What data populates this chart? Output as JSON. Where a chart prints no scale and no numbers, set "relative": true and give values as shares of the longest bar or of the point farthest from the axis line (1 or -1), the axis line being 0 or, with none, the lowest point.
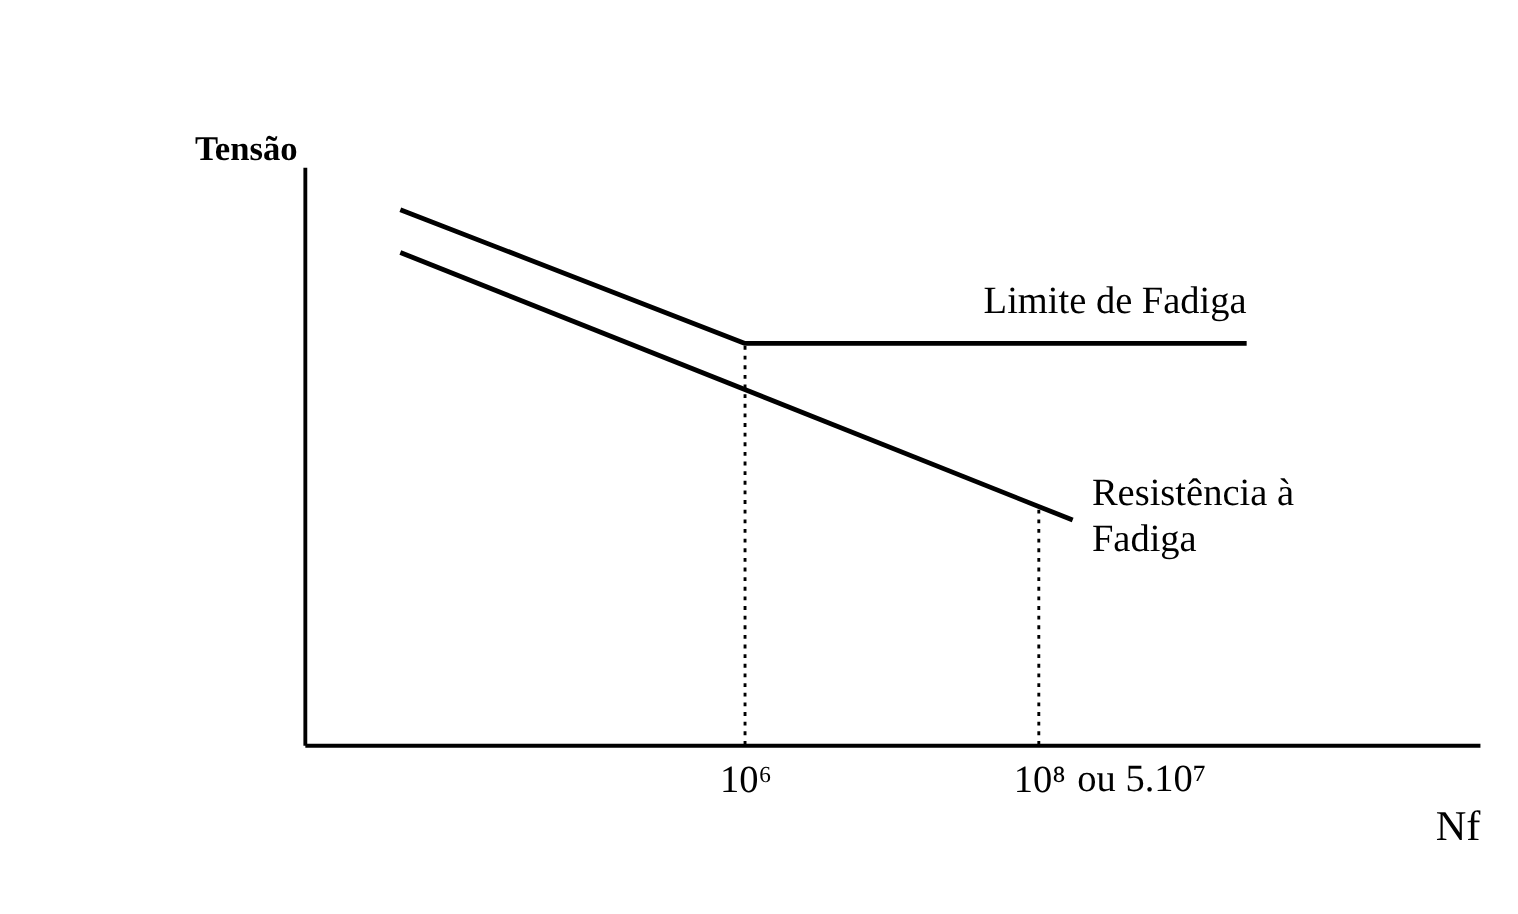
{
  "chart_data": {
    "type": "line",
    "relative": true,
    "ylabel": "Tensão",
    "xlabel": "Nf",
    "log": "x",
    "xlim": [
      1000,
      100000000000
    ],
    "xticks": [
      {
        "value": 1000000,
        "label": "10⁶"
      },
      {
        "value": 100000000,
        "label": "10⁸"
      }
    ],
    "annotations": [
      "ou 5.10⁷"
    ],
    "ref_lines": [
      {
        "axis": "x",
        "value": 1000000,
        "line_style": "dotted",
        "color": "#000000"
      },
      {
        "axis": "x",
        "value": 100000000,
        "line_style": "dotted",
        "color": "#000000"
      }
    ],
    "tick_labels": "x",
    "marker": "none",
    "line_style": "solid",
    "series": [
      {
        "name": "Limite de Fadiga",
        "color": "#000000",
        "x": [
          4500,
          1000000,
          2600000000
        ],
        "values": [
          1,
          0.75,
          0.75
        ]
      },
      {
        "name": "Resistência à Fadiga",
        "color": "#000000",
        "x": [
          4500,
          170000000
        ],
        "values": [
          0.92,
          0.42
        ]
      }
    ]
  }
}
